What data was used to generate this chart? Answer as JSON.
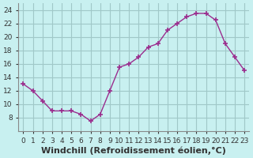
{
  "x": [
    0,
    1,
    2,
    3,
    4,
    5,
    6,
    7,
    8,
    9,
    10,
    11,
    12,
    13,
    14,
    15,
    16,
    17,
    18,
    19,
    20,
    21,
    22,
    23
  ],
  "y": [
    13,
    12,
    10.5,
    9,
    9,
    9,
    8.5,
    7.5,
    8.5,
    12,
    15.5,
    16,
    17,
    18.5,
    19,
    21,
    22,
    23,
    23.5,
    23.5,
    22.5,
    19,
    17,
    15
  ],
  "line_color": "#9b2d8e",
  "marker": "+",
  "marker_size": 5,
  "background_color": "#c8f0f0",
  "grid_color": "#a0c8c8",
  "xlabel": "Windchill (Refroidissement éolien,°C)",
  "xlabel_fontsize": 8,
  "tick_fontsize": 6.5,
  "ylim": [
    6,
    25
  ],
  "xlim": [
    -0.5,
    23.5
  ],
  "yticks": [
    8,
    10,
    12,
    14,
    16,
    18,
    20,
    22,
    24
  ],
  "xtick_labels": [
    "0",
    "1",
    "2",
    "3",
    "4",
    "5",
    "6",
    "7",
    "8",
    "9",
    "10",
    "11",
    "12",
    "13",
    "14",
    "15",
    "16",
    "17",
    "18",
    "19",
    "20",
    "21",
    "22",
    "23"
  ]
}
